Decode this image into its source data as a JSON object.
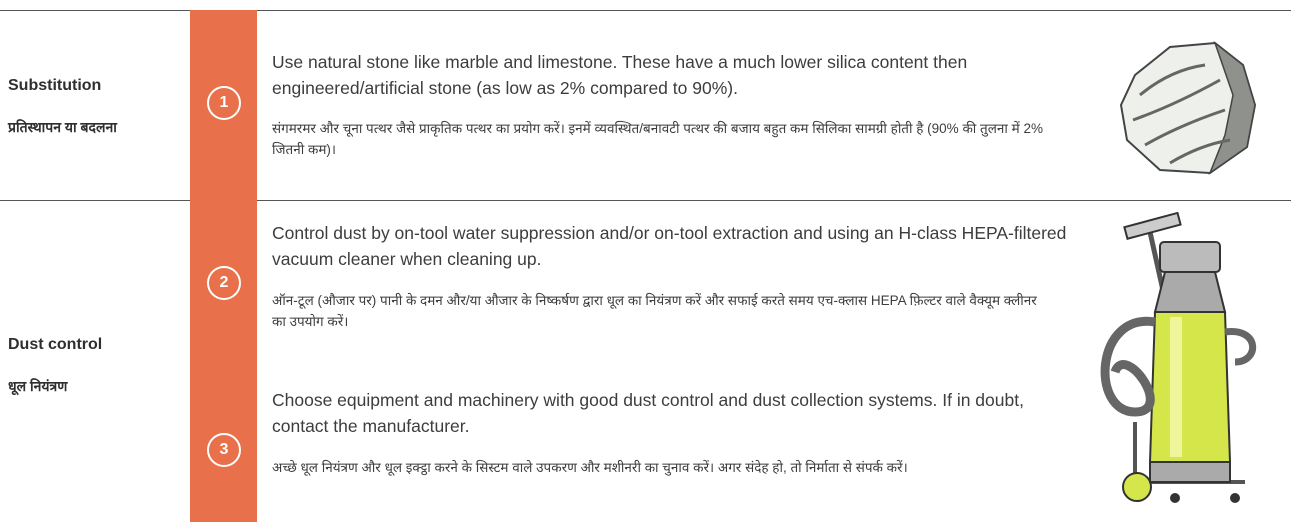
{
  "rows": [
    {
      "label": "Substitution",
      "label_hi": "प्रतिस्थापन या बदलना",
      "items": [
        {
          "number": 1,
          "text_en": "Use natural stone like marble and limestone. These have a much lower silica content then engineered/artificial stone (as low as 2% compared to 90%).",
          "text_hi": "संगमरमर और चूना पत्थर जैसे प्राकृतिक पत्थर का प्रयोग करें। इनमें व्यवस्थित/बनावटी पत्थर की बजाय बहुत कम सिलिका सामग्री होती है (90% की तुलना में 2% जितनी कम)।"
        }
      ]
    },
    {
      "label": "Dust control",
      "label_hi": "धूल नियंत्रण",
      "items": [
        {
          "number": 2,
          "text_en": "Control dust by on-tool water suppression and/or on-tool extraction and using an H-class HEPA-filtered vacuum cleaner when cleaning up.",
          "text_hi": "ऑन-टूल (औजार पर) पानी के दमन और/या औजार के निष्कर्षण द्वारा धूल का नियंत्रण करें और सफाई करते समय एच-क्लास HEPA फ़िल्टर वाले वैक्यूम क्लीनर का उपयोग करें।"
        },
        {
          "number": 3,
          "text_en": "Choose equipment and machinery with good dust control and dust collection systems. If in doubt, contact the manufacturer.",
          "text_hi": "अच्छे धूल नियंत्रण और धूल इक्ट्ठा करने के सिस्टम वाले उपकरण और मशीनरी का चुनाव करें। अगर संदेह हो, तो निर्माता से संपर्क करें।"
        }
      ]
    }
  ]
}
